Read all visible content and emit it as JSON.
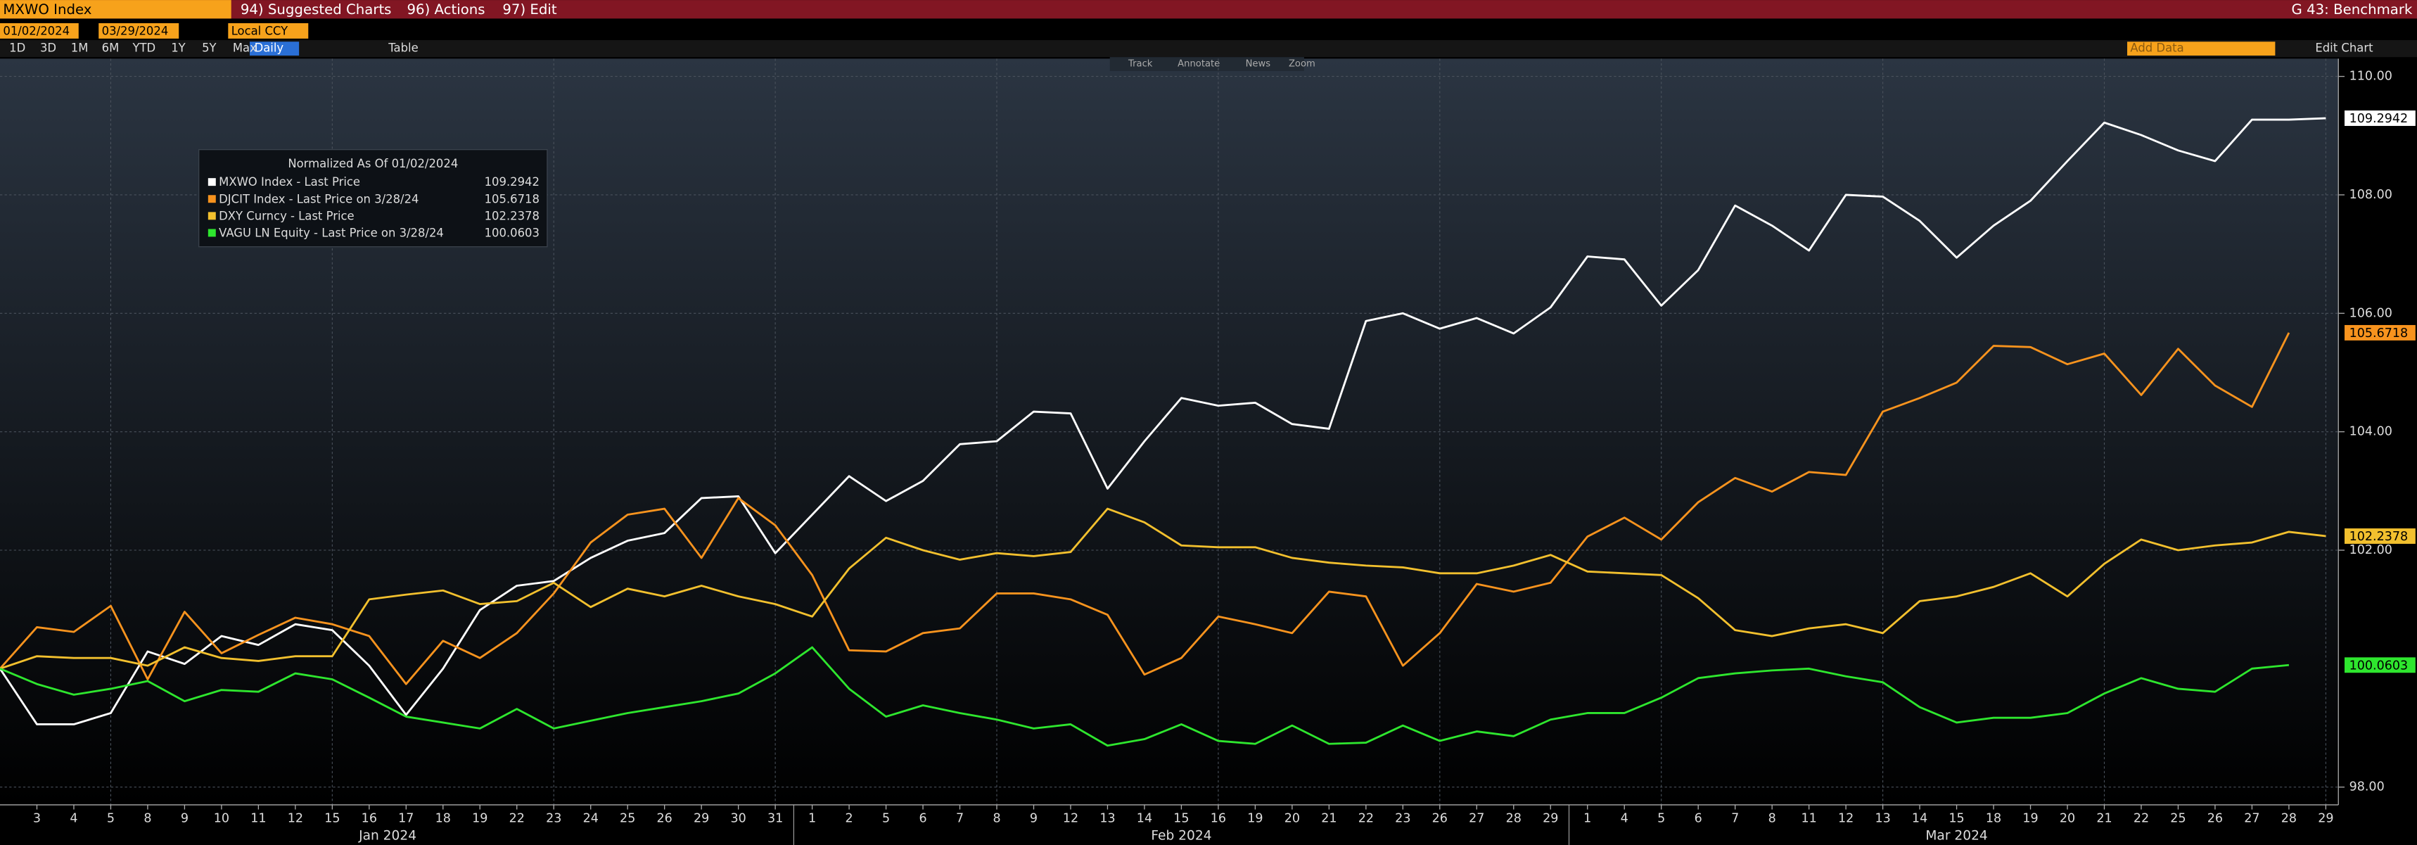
{
  "ui": {
    "security": "MXWO Index",
    "menus": [
      "94) Suggested Charts",
      "96) Actions",
      "97) Edit"
    ],
    "function": "G 43: Benchmark",
    "start_date": "01/02/2024",
    "end_date": "03/29/2024",
    "currency": "Local CCY",
    "periods": [
      "1D",
      "3D",
      "1M",
      "6M",
      "YTD",
      "1Y",
      "5Y",
      "Max"
    ],
    "frequency": "Daily",
    "table": "Table",
    "tools": [
      "Track",
      "Annotate",
      "News",
      "Zoom"
    ],
    "add_data": "Add Data",
    "edit_chart": "Edit Chart"
  },
  "chart_data": {
    "type": "line",
    "legend_title": "Normalized As Of 01/02/2024",
    "categories": [
      null,
      "3",
      "4",
      "5",
      "8",
      "9",
      "10",
      "11",
      "12",
      "15",
      "16",
      "17",
      "18",
      "19",
      "22",
      "23",
      "24",
      "25",
      "26",
      "29",
      "30",
      "31",
      "1",
      "2",
      "5",
      "6",
      "7",
      "8",
      "9",
      "12",
      "13",
      "14",
      "15",
      "16",
      "19",
      "20",
      "21",
      "22",
      "23",
      "26",
      "27",
      "28",
      "29",
      "1",
      "4",
      "5",
      "6",
      "7",
      "8",
      "11",
      "12",
      "13",
      "14",
      "15",
      "18",
      "19",
      "20",
      "21",
      "22",
      "25",
      "26",
      "27",
      "28",
      "29"
    ],
    "months": [
      "Jan 2024",
      "Feb 2024",
      "Mar 2024"
    ],
    "series": [
      {
        "name": "MXWO Index - Last Price",
        "color": "#ffffff",
        "values": [
          100,
          99.06,
          99.06,
          99.25,
          100.29,
          100.08,
          100.55,
          100.4,
          100.75,
          100.65,
          100.05,
          99.22,
          100,
          100.99,
          101.4,
          101.48,
          101.87,
          102.16,
          102.29,
          102.88,
          102.91,
          101.95,
          102.6,
          103.25,
          102.83,
          103.17,
          103.79,
          103.84,
          104.34,
          104.31,
          103.04,
          103.84,
          104.57,
          104.44,
          104.49,
          104.13,
          104.05,
          105.87,
          106,
          105.74,
          105.92,
          105.66,
          106.1,
          106.96,
          106.91,
          106.13,
          106.73,
          107.82,
          107.48,
          107.06,
          108,
          107.97,
          107.56,
          106.94,
          107.48,
          107.9,
          108.57,
          109.22,
          109.01,
          108.75,
          108.57,
          109.27,
          109.27,
          109.2942
        ]
      },
      {
        "name": "DJCIT Index - Last Price on 3/28/24",
        "color": "#f7931e",
        "values": [
          100,
          100.7,
          100.62,
          101.06,
          99.82,
          100.96,
          100.26,
          100.57,
          100.86,
          100.75,
          100.55,
          99.74,
          100.47,
          100.18,
          100.6,
          101.27,
          102.13,
          102.6,
          102.7,
          101.87,
          102.88,
          102.42,
          101.58,
          100.31,
          100.29,
          100.6,
          100.68,
          101.27,
          101.27,
          101.17,
          100.91,
          99.9,
          100.18,
          100.88,
          100.75,
          100.6,
          101.3,
          101.22,
          100.05,
          100.6,
          101.43,
          101.3,
          101.45,
          102.23,
          102.55,
          102.18,
          102.81,
          103.22,
          102.99,
          103.32,
          103.27,
          104.34,
          104.57,
          104.83,
          105.45,
          105.43,
          105.14,
          105.32,
          104.62,
          105.4,
          104.78,
          104.42,
          105.6718,
          null
        ]
      },
      {
        "name": "DXY Curncy - Last Price",
        "color": "#f2c02e",
        "values": [
          100,
          100.21,
          100.18,
          100.18,
          100.05,
          100.36,
          100.18,
          100.13,
          100.21,
          100.21,
          101.17,
          101.25,
          101.32,
          101.09,
          101.14,
          101.45,
          101.04,
          101.35,
          101.22,
          101.4,
          101.22,
          101.09,
          100.88,
          101.69,
          102.21,
          102,
          101.84,
          101.95,
          101.9,
          101.97,
          102.7,
          102.47,
          102.08,
          102.05,
          102.05,
          101.87,
          101.79,
          101.74,
          101.71,
          101.61,
          101.61,
          101.74,
          101.92,
          101.64,
          101.61,
          101.58,
          101.19,
          100.65,
          100.55,
          100.68,
          100.75,
          100.6,
          101.14,
          101.22,
          101.38,
          101.61,
          101.22,
          101.77,
          102.18,
          102,
          102.08,
          102.13,
          102.31,
          102.2378
        ]
      },
      {
        "name": "VAGU LN Equity - Last Price on 3/28/24",
        "color": "#2ee62e",
        "values": [
          100,
          99.74,
          99.56,
          99.66,
          99.79,
          99.45,
          99.64,
          99.61,
          99.92,
          99.82,
          99.51,
          99.19,
          99.09,
          98.99,
          99.32,
          98.99,
          99.12,
          99.25,
          99.35,
          99.45,
          99.58,
          99.92,
          100.36,
          99.66,
          99.19,
          99.38,
          99.25,
          99.14,
          98.99,
          99.06,
          98.7,
          98.81,
          99.06,
          98.78,
          98.73,
          99.04,
          98.73,
          98.75,
          99.04,
          98.78,
          98.94,
          98.86,
          99.14,
          99.25,
          99.25,
          99.51,
          99.84,
          99.92,
          99.97,
          100,
          99.87,
          99.77,
          99.35,
          99.09,
          99.17,
          99.17,
          99.25,
          99.58,
          99.84,
          99.66,
          99.61,
          100,
          100.0603,
          null
        ]
      }
    ],
    "ylim": [
      97.7,
      110.3
    ],
    "yticks": [
      {
        "value": 98,
        "label": "98.00"
      },
      {
        "value": 102,
        "label": "102.00"
      },
      {
        "value": 104,
        "label": "104.00"
      },
      {
        "value": 106,
        "label": "106.00"
      },
      {
        "value": 108,
        "label": "108.00"
      },
      {
        "value": 110,
        "label": "110.00"
      }
    ],
    "grid": true
  }
}
